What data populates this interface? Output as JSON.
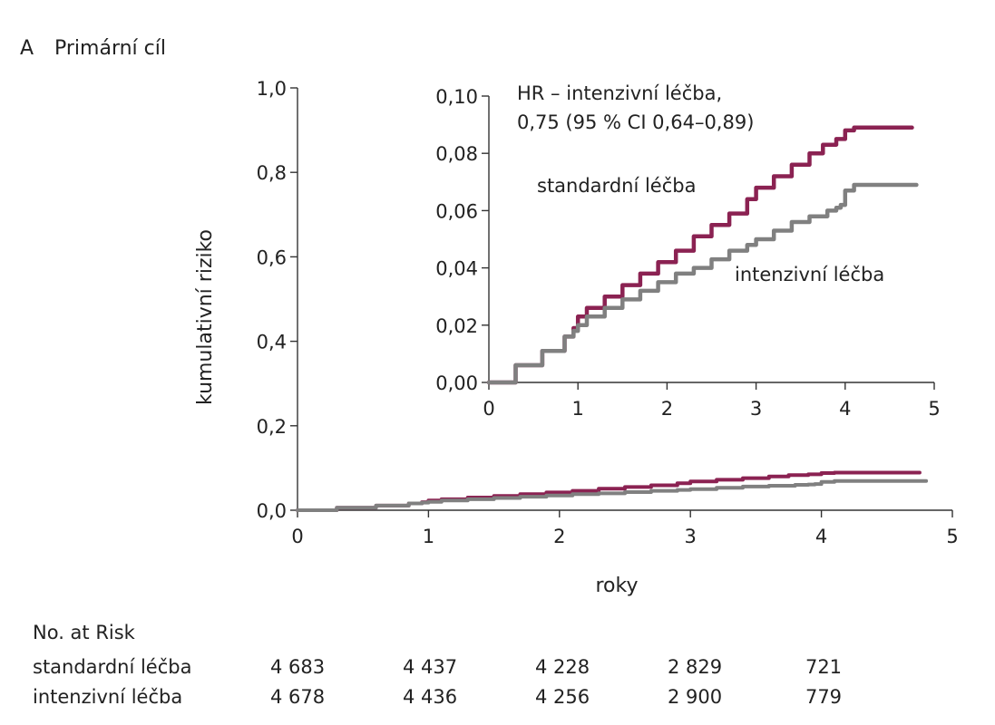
{
  "panel": {
    "letter": "A",
    "title": "Primární cíl"
  },
  "chart_data": {
    "type": "line",
    "main": {
      "xlabel": "roky",
      "ylabel": "kumulativní riziko",
      "xlim": [
        0,
        5
      ],
      "ylim": [
        0,
        1.0
      ],
      "x_ticks": [
        "0",
        "1",
        "2",
        "3",
        "4",
        "5"
      ],
      "y_ticks": [
        "0,0",
        "0,2",
        "0,4",
        "0,6",
        "0,8",
        "1,0"
      ]
    },
    "inset": {
      "xlim": [
        0,
        5
      ],
      "ylim": [
        0,
        0.1
      ],
      "x_ticks": [
        "0",
        "1",
        "2",
        "3",
        "4",
        "5"
      ],
      "y_ticks": [
        "0,00",
        "0,02",
        "0,04",
        "0,06",
        "0,08",
        "0,10"
      ],
      "annotation": [
        "HR – intenzivní léčba,",
        "0,75 (95 % CI 0,64–0,89)"
      ],
      "label_standard": "standardní léčba",
      "label_intensive": "intenzivní léčba"
    },
    "series": [
      {
        "name": "standardní léčba",
        "color": "#8b2252",
        "x": [
          0,
          0.3,
          0.6,
          0.85,
          0.95,
          1.0,
          1.1,
          1.3,
          1.5,
          1.7,
          1.9,
          2.1,
          2.3,
          2.5,
          2.7,
          2.9,
          3.0,
          3.2,
          3.4,
          3.6,
          3.75,
          3.9,
          4.0,
          4.1,
          4.3,
          4.5,
          4.75
        ],
        "y": [
          0,
          0.006,
          0.011,
          0.016,
          0.019,
          0.023,
          0.026,
          0.03,
          0.034,
          0.038,
          0.042,
          0.046,
          0.051,
          0.055,
          0.059,
          0.064,
          0.068,
          0.072,
          0.076,
          0.08,
          0.083,
          0.085,
          0.088,
          0.089,
          0.089,
          0.089,
          0.089
        ]
      },
      {
        "name": "intenzivní léčba",
        "color": "#808080",
        "x": [
          0,
          0.3,
          0.6,
          0.85,
          0.95,
          1.0,
          1.1,
          1.3,
          1.5,
          1.7,
          1.9,
          2.1,
          2.3,
          2.5,
          2.7,
          2.9,
          3.0,
          3.2,
          3.4,
          3.6,
          3.8,
          3.9,
          3.95,
          4.0,
          4.1,
          4.3,
          4.5,
          4.8
        ],
        "y": [
          0,
          0.006,
          0.011,
          0.016,
          0.018,
          0.02,
          0.023,
          0.026,
          0.029,
          0.032,
          0.035,
          0.038,
          0.04,
          0.043,
          0.046,
          0.048,
          0.05,
          0.053,
          0.056,
          0.058,
          0.06,
          0.061,
          0.062,
          0.067,
          0.069,
          0.069,
          0.069,
          0.069
        ]
      }
    ]
  },
  "at_risk": {
    "header": "No. at Risk",
    "rows": [
      {
        "label": "standardní léčba",
        "values": [
          "4 683",
          "4 437",
          "4 228",
          "2 829",
          "721"
        ]
      },
      {
        "label": "intenzivní léčba",
        "values": [
          "4 678",
          "4 436",
          "4 256",
          "2 900",
          "779"
        ]
      }
    ]
  }
}
